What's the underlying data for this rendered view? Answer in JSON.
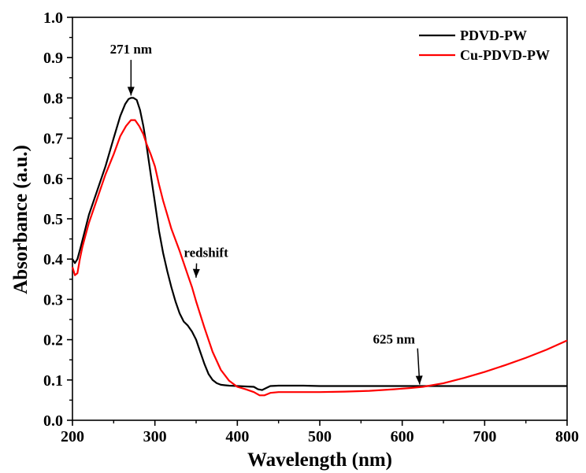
{
  "chart_data": {
    "type": "line",
    "xlabel": "Wavelength (nm)",
    "ylabel": "Absorbance (a.u.)",
    "xlim": [
      200,
      800
    ],
    "ylim": [
      0.0,
      1.0
    ],
    "xticks": [
      200,
      300,
      400,
      500,
      600,
      700,
      800
    ],
    "xtick_labels": [
      "200",
      "300",
      "400",
      "500",
      "600",
      "700",
      "800"
    ],
    "yticks": [
      0.0,
      0.1,
      0.2,
      0.3,
      0.4,
      0.5,
      0.6,
      0.7,
      0.8,
      0.9,
      1.0
    ],
    "ytick_labels": [
      "0.0",
      "0.1",
      "0.2",
      "0.3",
      "0.4",
      "0.5",
      "0.6",
      "0.7",
      "0.8",
      "0.9",
      "1.0"
    ],
    "grid": false,
    "legend_position": "top-right",
    "series": [
      {
        "name": "PDVD-PW",
        "color": "#000000",
        "x": [
          200,
          203,
          206,
          210,
          215,
          220,
          230,
          240,
          250,
          258,
          264,
          268,
          271,
          274,
          278,
          282,
          286,
          290,
          295,
          300,
          305,
          310,
          315,
          320,
          325,
          330,
          335,
          340,
          345,
          350,
          355,
          360,
          365,
          370,
          375,
          380,
          385,
          390,
          400,
          410,
          420,
          425,
          430,
          435,
          440,
          450,
          460,
          480,
          500,
          550,
          600,
          625,
          650,
          700,
          750,
          800
        ],
        "y": [
          0.4,
          0.39,
          0.4,
          0.43,
          0.47,
          0.51,
          0.57,
          0.63,
          0.7,
          0.755,
          0.785,
          0.797,
          0.8,
          0.8,
          0.795,
          0.77,
          0.73,
          0.68,
          0.61,
          0.54,
          0.47,
          0.415,
          0.37,
          0.33,
          0.295,
          0.265,
          0.245,
          0.235,
          0.22,
          0.2,
          0.17,
          0.14,
          0.115,
          0.1,
          0.092,
          0.088,
          0.087,
          0.086,
          0.085,
          0.084,
          0.083,
          0.077,
          0.075,
          0.08,
          0.085,
          0.086,
          0.086,
          0.086,
          0.085,
          0.085,
          0.085,
          0.085,
          0.085,
          0.085,
          0.085,
          0.085
        ]
      },
      {
        "name": "Cu-PDVD-PW",
        "color": "#ff0000",
        "x": [
          200,
          203,
          206,
          209,
          212,
          216,
          220,
          230,
          240,
          250,
          258,
          265,
          271,
          276,
          281,
          286,
          290,
          295,
          300,
          305,
          310,
          315,
          320,
          330,
          340,
          345,
          350,
          360,
          370,
          380,
          390,
          400,
          410,
          420,
          427,
          433,
          440,
          450,
          470,
          500,
          530,
          560,
          590,
          610,
          625,
          650,
          675,
          700,
          725,
          750,
          775,
          800
        ],
        "y": [
          0.38,
          0.36,
          0.365,
          0.4,
          0.43,
          0.46,
          0.49,
          0.55,
          0.61,
          0.66,
          0.705,
          0.73,
          0.745,
          0.745,
          0.73,
          0.71,
          0.685,
          0.66,
          0.63,
          0.585,
          0.545,
          0.51,
          0.475,
          0.42,
          0.36,
          0.33,
          0.295,
          0.23,
          0.17,
          0.125,
          0.098,
          0.083,
          0.077,
          0.07,
          0.062,
          0.062,
          0.068,
          0.07,
          0.07,
          0.07,
          0.071,
          0.073,
          0.077,
          0.08,
          0.083,
          0.092,
          0.105,
          0.12,
          0.137,
          0.155,
          0.175,
          0.198
        ]
      }
    ],
    "annotations": [
      {
        "text": "271 nm",
        "point": [
          271,
          0.8
        ],
        "label_pos": [
          271,
          0.91
        ],
        "arrow": "down"
      },
      {
        "text": "redshift",
        "point": [
          348,
          0.35
        ],
        "label_pos": [
          362,
          0.405
        ],
        "arrow": "down-left"
      },
      {
        "text": "625 nm",
        "point": [
          624,
          0.083
        ],
        "label_pos": [
          590,
          0.19
        ],
        "arrow": "down-right"
      }
    ]
  }
}
